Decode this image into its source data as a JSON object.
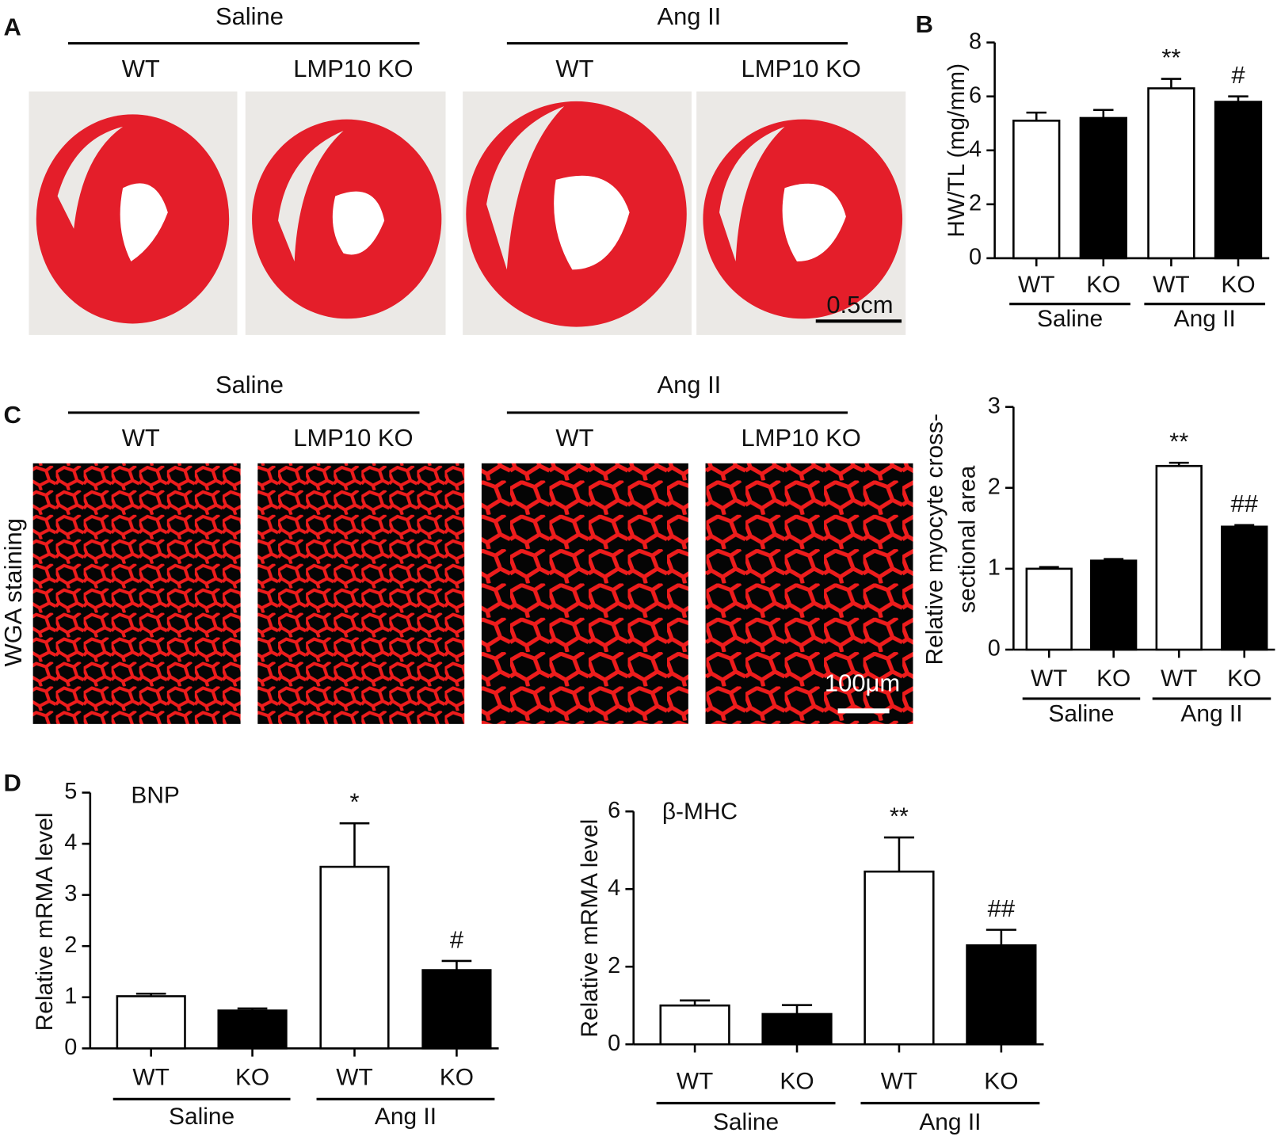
{
  "panel_labels": [
    "A",
    "B",
    "C",
    "D"
  ],
  "panel_a": {
    "groups": [
      "Saline",
      "Ang II"
    ],
    "columns": [
      "WT",
      "LMP10 KO",
      "WT",
      "LMP10 KO"
    ],
    "scale_bar": "0.5cm"
  },
  "panel_c": {
    "groups": [
      "Saline",
      "Ang II"
    ],
    "columns": [
      "WT",
      "LMP10 KO",
      "WT",
      "LMP10 KO"
    ],
    "side_label": "WGA staining",
    "scale_bar": "100μm"
  },
  "chart_data": [
    {
      "type": "bar",
      "ylabel": [
        "HW/TL (mg/mm)"
      ],
      "categories": [
        "WT",
        "KO",
        "WT",
        "KO"
      ],
      "groups": [
        "Saline",
        "Ang II"
      ],
      "values": [
        5.1,
        5.2,
        6.3,
        5.8
      ],
      "errors": [
        0.3,
        0.3,
        0.35,
        0.2
      ],
      "annotations": [
        null,
        null,
        "**",
        "#"
      ],
      "colors": [
        "#ffffff",
        "#000000",
        "#ffffff",
        "#000000"
      ],
      "ylim": [
        0,
        8
      ],
      "yticks": [
        0,
        2,
        4,
        6,
        8
      ]
    },
    {
      "type": "bar",
      "ylabel": [
        "Relative myocyte cross-",
        "sectional area"
      ],
      "categories": [
        "WT",
        "KO",
        "WT",
        "KO"
      ],
      "groups": [
        "Saline",
        "Ang II"
      ],
      "values": [
        1.0,
        1.1,
        2.27,
        1.52
      ],
      "errors": [
        0.02,
        0.02,
        0.04,
        0.02
      ],
      "annotations": [
        null,
        null,
        "**",
        "##"
      ],
      "colors": [
        "#ffffff",
        "#000000",
        "#ffffff",
        "#000000"
      ],
      "ylim": [
        0,
        3
      ],
      "yticks": [
        0,
        1,
        2,
        3
      ]
    },
    {
      "type": "bar",
      "title": "BNP",
      "ylabel": [
        "Relative mRMA level"
      ],
      "categories": [
        "WT",
        "KO",
        "WT",
        "KO"
      ],
      "groups": [
        "Saline",
        "Ang II"
      ],
      "values": [
        1.02,
        0.74,
        3.55,
        1.53
      ],
      "errors": [
        0.05,
        0.04,
        0.85,
        0.18
      ],
      "annotations": [
        null,
        null,
        "*",
        "#"
      ],
      "colors": [
        "#ffffff",
        "#000000",
        "#ffffff",
        "#000000"
      ],
      "ylim": [
        0,
        5
      ],
      "yticks": [
        0,
        1,
        2,
        3,
        4,
        5
      ]
    },
    {
      "type": "bar",
      "title": "β-MHC",
      "ylabel": [
        "Relative mRMA level"
      ],
      "categories": [
        "WT",
        "KO",
        "WT",
        "KO"
      ],
      "groups": [
        "Saline",
        "Ang II"
      ],
      "values": [
        1.0,
        0.78,
        4.45,
        2.55
      ],
      "errors": [
        0.13,
        0.23,
        0.88,
        0.4
      ],
      "annotations": [
        null,
        null,
        "**",
        "##"
      ],
      "colors": [
        "#ffffff",
        "#000000",
        "#ffffff",
        "#000000"
      ],
      "ylim": [
        0,
        6
      ],
      "yticks": [
        0,
        2,
        4,
        6
      ]
    }
  ]
}
